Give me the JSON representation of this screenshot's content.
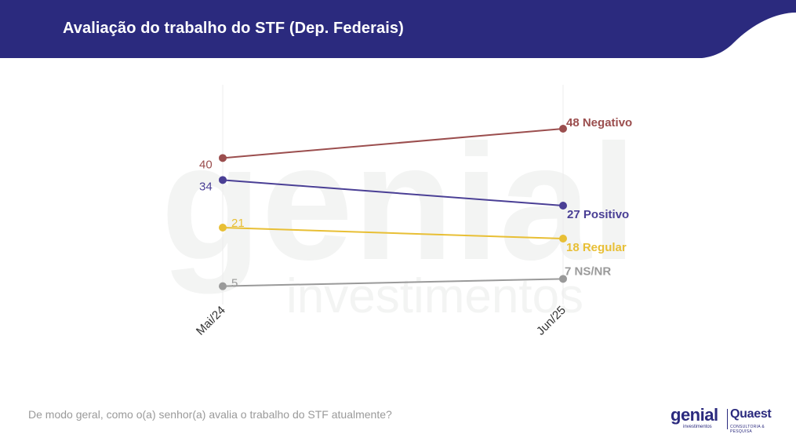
{
  "header": {
    "title": "Avaliação do trabalho do STF (Dep. Federais)",
    "bg_color": "#2b2a7e"
  },
  "chart_data": {
    "type": "line",
    "categories": [
      "Mai/24",
      "Jun/25"
    ],
    "ylim": [
      0,
      60
    ],
    "grid": false,
    "series": [
      {
        "name": "Negativo",
        "values": [
          40,
          48
        ],
        "color": "#9b4e4e",
        "start_label": "40",
        "end_label": "48 Negativo"
      },
      {
        "name": "Positivo",
        "values": [
          34,
          27
        ],
        "color": "#4a3f95",
        "start_label": "34",
        "end_label": "27 Positivo"
      },
      {
        "name": "Regular",
        "values": [
          21,
          18
        ],
        "color": "#e8bf35",
        "start_label": "21",
        "end_label": "18 Regular"
      },
      {
        "name": "NS/NR",
        "values": [
          5,
          7
        ],
        "color": "#9a9a9a",
        "start_label": "5",
        "end_label": "7 NS/NR"
      }
    ]
  },
  "watermark": {
    "line1": "genial",
    "line2": "investimentos"
  },
  "footer": {
    "question": "De modo geral, como o(a) senhor(a) avalia o trabalho do STF atualmente?"
  },
  "logos": {
    "genial": "genial",
    "genial_sub": "investimentos",
    "quaest": "Quaest",
    "quaest_sub": "CONSULTORIA & PESQUISA"
  }
}
